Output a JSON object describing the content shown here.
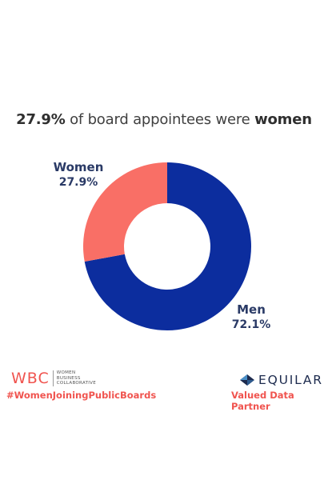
{
  "title": {
    "pct": "27.9%",
    "middle": " of board appointees were ",
    "emph": "women"
  },
  "chart_data": {
    "type": "pie",
    "title": "27.9% of board appointees were women",
    "slices": [
      {
        "name": "Men",
        "value": 72.1,
        "label": "72.1%",
        "color": "#0c2d9e"
      },
      {
        "name": "Women",
        "value": 27.9,
        "label": "27.9%",
        "color": "#f96f66"
      }
    ],
    "donut": true,
    "start": "12 o'clock, clockwise"
  },
  "footer": {
    "wbc_mark": "WBC",
    "wbc_line1": "WOMEN",
    "wbc_line2": "BUSINESS",
    "wbc_line3": "COLLABORATIVE",
    "hashtag": "#WomenJoiningPublicBoards",
    "equilar": "EQUILAR",
    "partner": "Valued Data Partner"
  },
  "colors": {
    "accent": "#f0544f",
    "navy": "#0c2d9e",
    "coral": "#f96f66",
    "label_text": "#2a3a66"
  }
}
